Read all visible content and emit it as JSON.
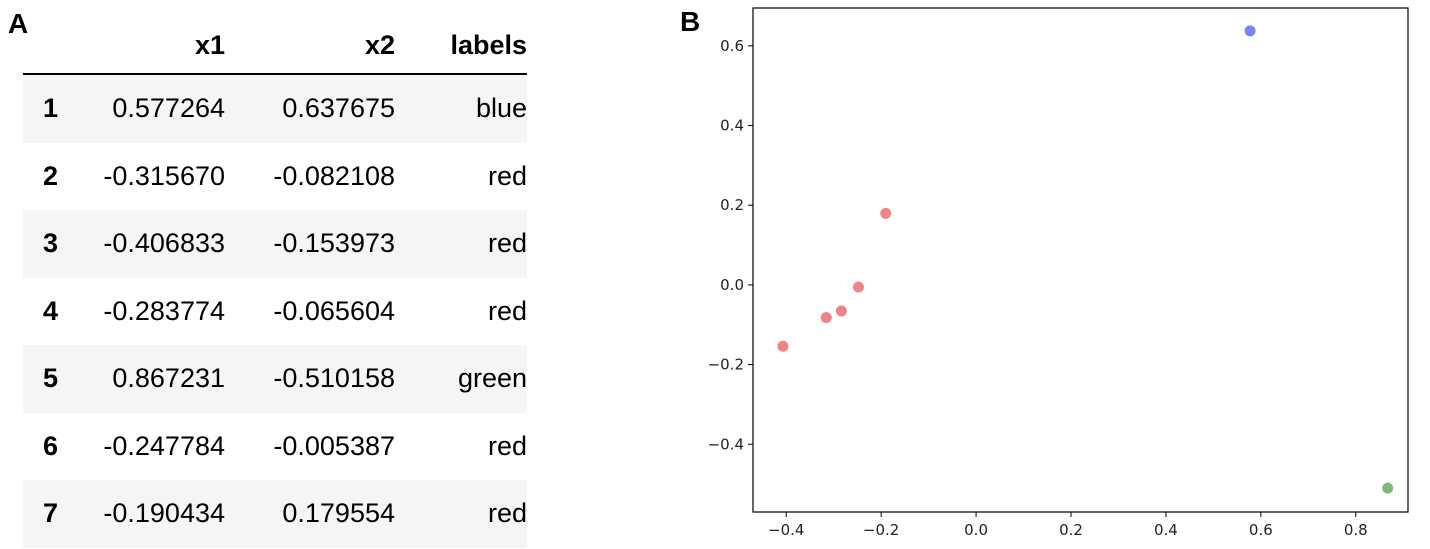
{
  "panels": {
    "a": "A",
    "b": "B"
  },
  "table": {
    "columns": [
      "",
      "x1",
      "x2",
      "labels"
    ],
    "rows": [
      [
        "1",
        "0.577264",
        "0.637675",
        "blue"
      ],
      [
        "2",
        "-0.315670",
        "-0.082108",
        "red"
      ],
      [
        "3",
        "-0.406833",
        "-0.153973",
        "red"
      ],
      [
        "4",
        "-0.283774",
        "-0.065604",
        "red"
      ],
      [
        "5",
        "0.867231",
        "-0.510158",
        "green"
      ],
      [
        "6",
        "-0.247784",
        "-0.005387",
        "red"
      ],
      [
        "7",
        "-0.190434",
        "0.179554",
        "red"
      ]
    ]
  },
  "chart_data": {
    "type": "scatter",
    "title": "",
    "xlabel": "",
    "ylabel": "",
    "xlim": [
      -0.47,
      0.91
    ],
    "ylim": [
      -0.57,
      0.695
    ],
    "xticks": [
      -0.4,
      -0.2,
      0.0,
      0.2,
      0.4,
      0.6,
      0.8
    ],
    "xtick_labels": [
      "−0.4",
      "−0.2",
      "0.0",
      "0.2",
      "0.4",
      "0.6",
      "0.8"
    ],
    "yticks": [
      -0.4,
      -0.2,
      0.0,
      0.2,
      0.4,
      0.6
    ],
    "ytick_labels": [
      "−0.4",
      "−0.2",
      "0.0",
      "0.2",
      "0.4",
      "0.6"
    ],
    "grid": false,
    "points": [
      {
        "x": 0.577264,
        "y": 0.637675,
        "label": "blue"
      },
      {
        "x": -0.31567,
        "y": -0.082108,
        "label": "red"
      },
      {
        "x": -0.406833,
        "y": -0.153973,
        "label": "red"
      },
      {
        "x": -0.283774,
        "y": -0.065604,
        "label": "red"
      },
      {
        "x": 0.867231,
        "y": -0.510158,
        "label": "green"
      },
      {
        "x": -0.247784,
        "y": -0.005387,
        "label": "red"
      },
      {
        "x": -0.190434,
        "y": 0.179554,
        "label": "red"
      }
    ],
    "colors": {
      "blue": "#5f6ff0",
      "red": "#ec6f73",
      "green": "#6aac63"
    }
  }
}
